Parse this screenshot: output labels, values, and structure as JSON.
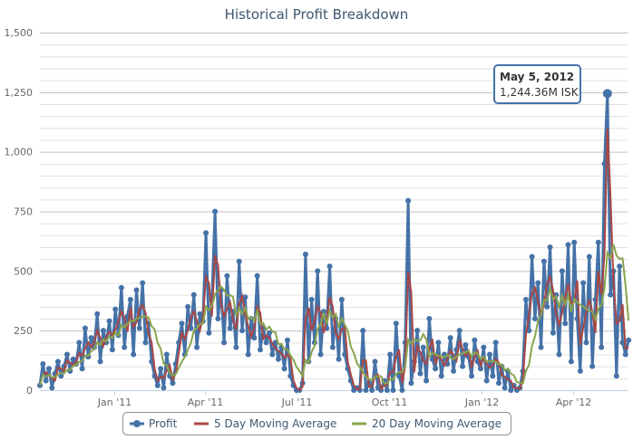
{
  "chart_data": {
    "type": "line",
    "title": "Historical Profit Breakdown",
    "xlabel": "",
    "ylabel": "",
    "ylim": [
      0,
      1500
    ],
    "y_ticks": [
      "0",
      "250",
      "500",
      "750",
      "1,000",
      "1,250",
      "1,500"
    ],
    "y_tick_values": [
      0,
      250,
      500,
      750,
      1000,
      1250,
      1500
    ],
    "x_ticks": [
      {
        "label": "Jan '11",
        "date": "2011-01-01"
      },
      {
        "label": "Apr '11",
        "date": "2011-04-01"
      },
      {
        "label": "Jul '11",
        "date": "2011-07-01"
      },
      {
        "label": "Oct '11",
        "date": "2011-10-01"
      },
      {
        "label": "Jan '12",
        "date": "2012-01-01"
      },
      {
        "label": "Apr '12",
        "date": "2012-04-01"
      }
    ],
    "x_range": [
      "2010-10-19",
      "2012-05-25"
    ],
    "start_date": "2010-10-19",
    "step_days": 3,
    "grid": true,
    "legend_position": "bottom-center",
    "series": [
      {
        "name": "Profit",
        "color": "#4572A7",
        "values": [
          20,
          110,
          40,
          90,
          10,
          70,
          120,
          60,
          100,
          150,
          80,
          130,
          110,
          200,
          90,
          260,
          140,
          220,
          180,
          320,
          120,
          250,
          200,
          290,
          170,
          340,
          230,
          430,
          180,
          310,
          380,
          150,
          420,
          260,
          450,
          200,
          280,
          120,
          60,
          20,
          90,
          10,
          150,
          60,
          30,
          110,
          200,
          280,
          150,
          350,
          260,
          400,
          180,
          320,
          290,
          660,
          240,
          380,
          750,
          300,
          420,
          200,
          480,
          260,
          330,
          180,
          540,
          250,
          390,
          150,
          300,
          220,
          480,
          170,
          260,
          200,
          240,
          150,
          200,
          130,
          180,
          90,
          210,
          60,
          20,
          0,
          0,
          30,
          570,
          120,
          380,
          200,
          500,
          150,
          330,
          260,
          520,
          180,
          300,
          130,
          380,
          150,
          90,
          40,
          0,
          10,
          0,
          250,
          0,
          30,
          0,
          120,
          10,
          0,
          40,
          0,
          150,
          0,
          280,
          60,
          0,
          200,
          795,
          30,
          120,
          250,
          70,
          180,
          40,
          300,
          130,
          90,
          200,
          60,
          150,
          110,
          220,
          80,
          170,
          250,
          100,
          190,
          140,
          60,
          210,
          120,
          90,
          180,
          40,
          150,
          60,
          200,
          30,
          100,
          10,
          80,
          0,
          20,
          0,
          10,
          80,
          380,
          250,
          560,
          300,
          450,
          180,
          540,
          350,
          600,
          240,
          400,
          150,
          500,
          280,
          610,
          120,
          620,
          300,
          80,
          450,
          200,
          560,
          100,
          380,
          620,
          180,
          950,
          1244.36,
          400,
          500,
          60,
          520,
          200,
          150,
          210
        ]
      },
      {
        "name": "5 Day Moving Average",
        "color": "#AA4643",
        "window_days": 5,
        "source": "Profit"
      },
      {
        "name": "20 Day Moving Average",
        "color": "#89A54E",
        "window_days": 20,
        "source": "Profit"
      }
    ],
    "tooltip": {
      "date": "May 5, 2012",
      "value": "1,244.36M ISK",
      "point_value": 1244.36,
      "point_date": "2012-05-05"
    }
  }
}
